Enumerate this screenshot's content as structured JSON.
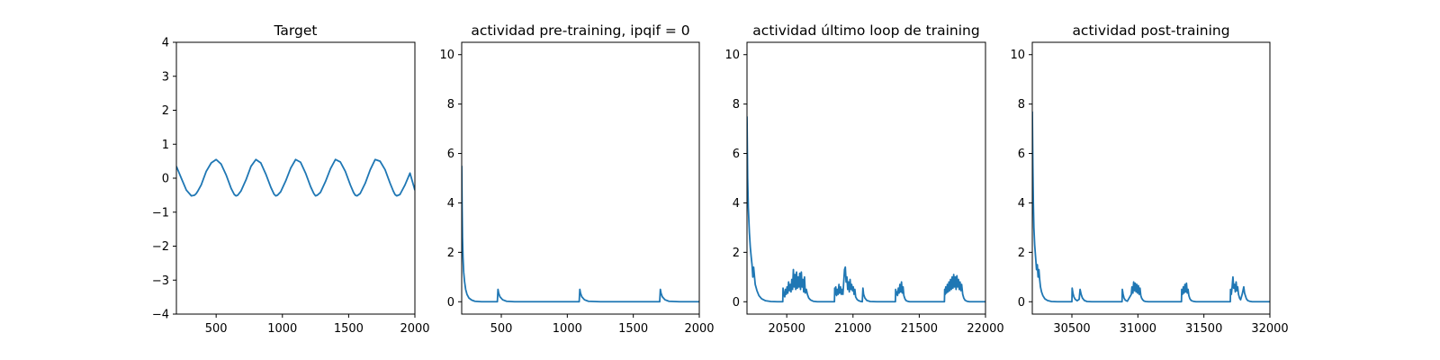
{
  "chart_data": [
    {
      "type": "line",
      "title": "Target",
      "xlim": [
        200,
        2000
      ],
      "ylim": [
        -4,
        4
      ],
      "xticks": [
        500,
        1000,
        1500,
        2000
      ],
      "yticks": [
        -4,
        -3,
        -2,
        -1,
        0,
        1,
        2,
        3,
        4
      ],
      "grid": false,
      "color": "#1f77b4",
      "series": [
        {
          "x": [
            200,
            237,
            275,
            313,
            337,
            350,
            363,
            387,
            425,
            463,
            500,
            537,
            575,
            613,
            637,
            650,
            663,
            687,
            725,
            763,
            800,
            837,
            875,
            913,
            937,
            950,
            963,
            987,
            1025,
            1063,
            1100,
            1137,
            1175,
            1213,
            1237,
            1250,
            1263,
            1287,
            1325,
            1363,
            1400,
            1437,
            1475,
            1513,
            1537,
            1550,
            1563,
            1587,
            1625,
            1663,
            1700,
            1737,
            1775,
            1813,
            1837,
            1850,
            1863,
            1887,
            1925,
            1963,
            2000
          ],
          "y": [
            0.35,
            0.0,
            -0.35,
            -0.52,
            -0.5,
            -0.45,
            -0.37,
            -0.2,
            0.2,
            0.45,
            0.55,
            0.42,
            0.1,
            -0.3,
            -0.48,
            -0.52,
            -0.5,
            -0.38,
            -0.05,
            0.35,
            0.55,
            0.45,
            0.12,
            -0.27,
            -0.47,
            -0.52,
            -0.5,
            -0.4,
            -0.08,
            0.3,
            0.55,
            0.47,
            0.15,
            -0.25,
            -0.45,
            -0.52,
            -0.5,
            -0.42,
            -0.1,
            0.28,
            0.55,
            0.48,
            0.2,
            -0.2,
            -0.42,
            -0.5,
            -0.52,
            -0.45,
            -0.15,
            0.25,
            0.55,
            0.5,
            0.25,
            -0.15,
            -0.38,
            -0.48,
            -0.52,
            -0.48,
            -0.2,
            0.15,
            -0.35
          ]
        }
      ]
    },
    {
      "type": "line",
      "title": "actividad pre-training, ipqif = 0",
      "xlim": [
        200,
        2000
      ],
      "ylim": [
        -0.5,
        10.5
      ],
      "xticks": [
        500,
        1000,
        1500,
        2000
      ],
      "yticks": [
        0,
        2,
        4,
        6,
        8,
        10
      ],
      "grid": false,
      "color": "#1f77b4",
      "series": [
        {
          "x": [
            200,
            203,
            206,
            210,
            215,
            222,
            230,
            240,
            255,
            275,
            300,
            350,
            400,
            470,
            475,
            480,
            490,
            510,
            540,
            600,
            800,
            1000,
            1090,
            1095,
            1100,
            1110,
            1130,
            1160,
            1250,
            1500,
            1700,
            1705,
            1710,
            1720,
            1740,
            1770,
            1850,
            2000
          ],
          "y": [
            5.5,
            3.8,
            2.6,
            1.8,
            1.2,
            0.8,
            0.5,
            0.3,
            0.15,
            0.07,
            0.02,
            0.0,
            0.0,
            0.0,
            0.5,
            0.35,
            0.2,
            0.08,
            0.02,
            0.0,
            0.0,
            0.0,
            0.0,
            0.5,
            0.35,
            0.2,
            0.08,
            0.02,
            0.0,
            0.0,
            0.0,
            0.5,
            0.35,
            0.2,
            0.08,
            0.02,
            0.0,
            0.0
          ]
        }
      ]
    },
    {
      "type": "line",
      "title": "actividad último loop de training",
      "xlim": [
        20200,
        22000
      ],
      "ylim": [
        -0.5,
        10.5
      ],
      "xticks": [
        20500,
        21000,
        21500,
        22000
      ],
      "yticks": [
        0,
        2,
        4,
        6,
        8,
        10
      ],
      "grid": false,
      "color": "#1f77b4",
      "series": [
        {
          "x": [
            20200,
            20205,
            20210,
            20218,
            20225,
            20232,
            20238,
            20244,
            20250,
            20262,
            20275,
            20290,
            20310,
            20340,
            20380,
            20430,
            20470,
            20472,
            20478,
            20485,
            20490,
            20496,
            20502,
            20508,
            20514,
            20520,
            20526,
            20532,
            20538,
            20544,
            20550,
            20556,
            20562,
            20568,
            20574,
            20580,
            20586,
            20592,
            20598,
            20604,
            20610,
            20616,
            20622,
            20628,
            20634,
            20640,
            20648,
            20656,
            20666,
            20680,
            20700,
            20730,
            20760,
            20800,
            20840,
            20860,
            20862,
            20866,
            20870,
            20876,
            20882,
            20888,
            20894,
            20900,
            20906,
            20912,
            20918,
            20924,
            20930,
            20936,
            20942,
            20948,
            20954,
            20960,
            20966,
            20972,
            20978,
            20984,
            20990,
            20996,
            21002,
            21008,
            21014,
            21020,
            21030,
            21040,
            21055,
            21070,
            21075,
            21080,
            21090,
            21105,
            21130,
            21180,
            21250,
            21320,
            21322,
            21326,
            21330,
            21336,
            21342,
            21348,
            21354,
            21360,
            21366,
            21372,
            21378,
            21384,
            21392,
            21400,
            21412,
            21428,
            21450,
            21500,
            21600,
            21690,
            21692,
            21696,
            21700,
            21706,
            21712,
            21718,
            21724,
            21730,
            21736,
            21742,
            21748,
            21754,
            21760,
            21766,
            21772,
            21778,
            21784,
            21790,
            21796,
            21802,
            21808,
            21814,
            21820,
            21828,
            21836,
            21846,
            21860,
            21880,
            21920,
            22000
          ],
          "y": [
            7.5,
            5.0,
            3.8,
            2.8,
            2.2,
            1.8,
            1.5,
            1.0,
            1.4,
            0.7,
            0.45,
            0.25,
            0.12,
            0.04,
            0.01,
            0.0,
            0.0,
            0.55,
            0.3,
            0.2,
            0.5,
            0.3,
            0.6,
            0.35,
            0.8,
            0.45,
            0.7,
            0.4,
            0.9,
            0.5,
            1.3,
            0.6,
            1.1,
            0.5,
            1.2,
            0.55,
            1.0,
            0.6,
            1.15,
            0.5,
            1.2,
            0.6,
            0.9,
            0.4,
            1.0,
            0.35,
            0.5,
            0.3,
            0.15,
            0.07,
            0.02,
            0.0,
            0.0,
            0.0,
            0.0,
            0.0,
            0.55,
            0.3,
            0.6,
            0.25,
            0.5,
            0.3,
            0.7,
            0.35,
            0.6,
            0.3,
            0.5,
            0.3,
            0.8,
            1.3,
            1.4,
            0.8,
            1.0,
            0.5,
            0.8,
            0.4,
            0.9,
            0.5,
            0.7,
            0.45,
            0.6,
            0.3,
            0.5,
            0.2,
            0.1,
            0.05,
            0.02,
            0.0,
            0.55,
            0.3,
            0.15,
            0.05,
            0.01,
            0.0,
            0.0,
            0.0,
            0.5,
            0.3,
            0.4,
            0.25,
            0.55,
            0.35,
            0.7,
            0.4,
            0.8,
            0.35,
            0.6,
            0.25,
            0.12,
            0.05,
            0.02,
            0.0,
            0.0,
            0.0,
            0.0,
            0.0,
            0.5,
            0.3,
            0.6,
            0.35,
            0.7,
            0.4,
            0.8,
            0.45,
            0.9,
            0.5,
            1.0,
            0.55,
            1.1,
            0.6,
            1.0,
            0.5,
            1.05,
            0.6,
            0.9,
            0.5,
            0.8,
            0.45,
            0.7,
            0.3,
            0.15,
            0.06,
            0.02,
            0.0,
            0.0,
            0.0
          ]
        }
      ]
    },
    {
      "type": "line",
      "title": "actividad post-training",
      "xlim": [
        30200,
        32000
      ],
      "ylim": [
        -0.5,
        10.5
      ],
      "xticks": [
        30500,
        31000,
        31500,
        32000
      ],
      "yticks": [
        0,
        2,
        4,
        6,
        8,
        10
      ],
      "grid": false,
      "color": "#1f77b4",
      "series": [
        {
          "x": [
            30200,
            30204,
            30208,
            30212,
            30218,
            30225,
            30232,
            30238,
            30244,
            30250,
            30256,
            30262,
            30270,
            30280,
            30295,
            30315,
            30345,
            30390,
            30450,
            30500,
            30502,
            30508,
            30515,
            30525,
            30540,
            30555,
            30562,
            30570,
            30580,
            30595,
            30615,
            30650,
            30750,
            30880,
            30882,
            30888,
            30895,
            30905,
            30920,
            30950,
            30955,
            30962,
            30968,
            30974,
            30980,
            30986,
            30992,
            30998,
            31004,
            31010,
            31016,
            31022,
            31028,
            31036,
            31046,
            31060,
            31080,
            31120,
            31200,
            31330,
            31332,
            31338,
            31344,
            31350,
            31356,
            31362,
            31368,
            31374,
            31380,
            31386,
            31394,
            31404,
            31418,
            31440,
            31480,
            31550,
            31700,
            31702,
            31708,
            31714,
            31720,
            31726,
            31732,
            31738,
            31744,
            31750,
            31756,
            31762,
            31770,
            31778,
            31790,
            31802,
            31808,
            31814,
            31822,
            31832,
            31846,
            31866,
            31900,
            32000
          ],
          "y": [
            7.7,
            5.5,
            4.0,
            3.0,
            2.3,
            1.8,
            1.3,
            1.5,
            1.0,
            1.3,
            0.9,
            0.6,
            0.4,
            0.25,
            0.12,
            0.05,
            0.01,
            0.0,
            0.0,
            0.0,
            0.55,
            0.35,
            0.2,
            0.1,
            0.04,
            0.1,
            0.5,
            0.3,
            0.15,
            0.05,
            0.01,
            0.0,
            0.0,
            0.0,
            0.5,
            0.3,
            0.15,
            0.06,
            0.02,
            0.3,
            0.6,
            0.35,
            0.8,
            0.45,
            0.75,
            0.4,
            0.7,
            0.35,
            0.65,
            0.3,
            0.55,
            0.25,
            0.15,
            0.08,
            0.03,
            0.01,
            0.0,
            0.0,
            0.0,
            0.0,
            0.5,
            0.3,
            0.6,
            0.35,
            0.7,
            0.4,
            0.75,
            0.35,
            0.5,
            0.25,
            0.12,
            0.05,
            0.02,
            0.0,
            0.0,
            0.0,
            0.0,
            0.5,
            0.3,
            0.6,
            1.0,
            0.55,
            0.7,
            0.4,
            0.8,
            0.45,
            0.6,
            0.3,
            0.15,
            0.08,
            0.3,
            0.6,
            0.35,
            0.25,
            0.12,
            0.05,
            0.02,
            0.0,
            0.0,
            0.0
          ]
        }
      ]
    }
  ]
}
